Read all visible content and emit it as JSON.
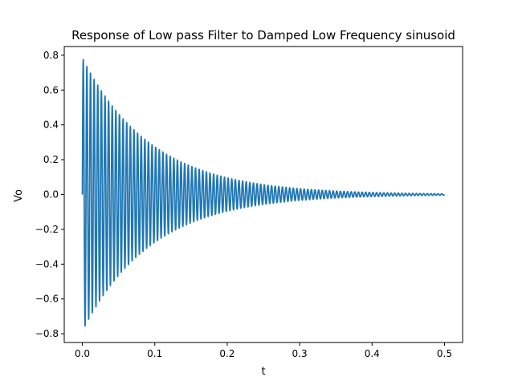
{
  "chart_data": {
    "type": "line",
    "title": "Response of Low pass Filter to Damped Low Frequency sinusoid",
    "xlabel": "t",
    "ylabel": "Vo",
    "xlim": [
      -0.025,
      0.525
    ],
    "ylim": [
      -0.85,
      0.85
    ],
    "xticks": [
      0.0,
      0.1,
      0.2,
      0.3,
      0.4,
      0.5
    ],
    "xtick_labels": [
      "0.0",
      "0.1",
      "0.2",
      "0.3",
      "0.4",
      "0.5"
    ],
    "yticks": [
      0.8,
      0.6,
      0.4,
      0.2,
      0.0,
      -0.2,
      -0.4,
      -0.6,
      -0.8
    ],
    "ytick_labels": [
      "0.8",
      "0.6",
      "0.4",
      "0.2",
      "0.0",
      "−0.2",
      "−0.4",
      "−0.6",
      "−0.8"
    ],
    "grid": false,
    "series": [
      {
        "color": "#1f77b4",
        "description_points": {
          "t": [
            0.0,
            0.0025,
            0.005,
            0.1,
            0.2,
            0.3,
            0.4,
            0.5
          ],
          "envelope": [
            0.78,
            0.77,
            0.75,
            0.34,
            0.12,
            0.035,
            0.012,
            0.004
          ]
        },
        "amplitude": 0.785,
        "decay_rate": 10.5,
        "frequency_hz": 200,
        "t_start": 0.0,
        "t_end": 0.5
      }
    ]
  }
}
